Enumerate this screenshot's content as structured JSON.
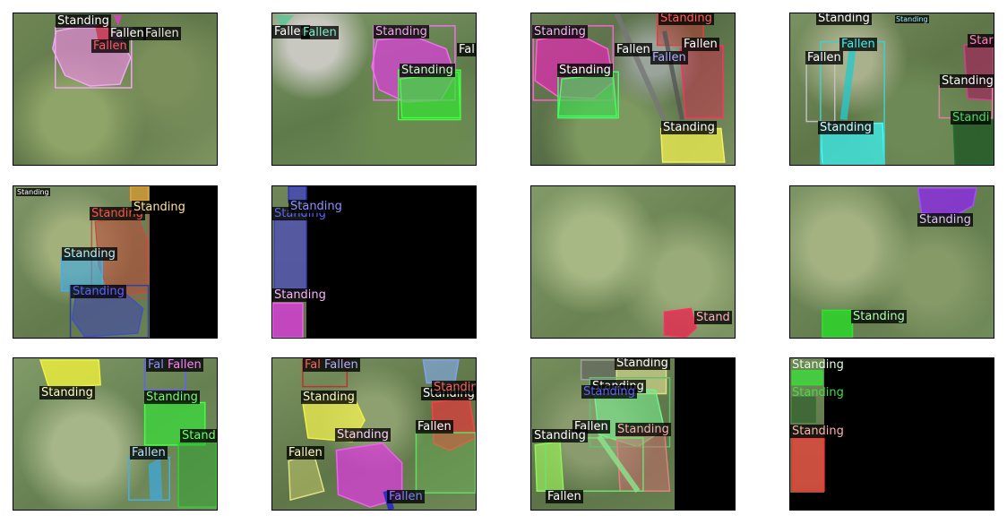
{
  "figure": {
    "panels": [
      {
        "id": "r1c1",
        "labels": [
          {
            "text": "Standing",
            "color": "#ffffff"
          },
          {
            "text": "Fallen",
            "color": "#ffffff"
          },
          {
            "text": "Fallen",
            "color": "#e8e8e8"
          },
          {
            "text": "Fallen",
            "color": "#ff5a5a"
          }
        ]
      },
      {
        "id": "r1c2",
        "labels": [
          {
            "text": "Fallen",
            "color": "#ffffff"
          },
          {
            "text": "Fallen",
            "color": "#7ef0c8"
          },
          {
            "text": "Standing",
            "color": "#ff9cff"
          },
          {
            "text": "Fal",
            "color": "#ffffff"
          },
          {
            "text": "Standing",
            "color": "#c8ffc8"
          }
        ]
      },
      {
        "id": "r1c3",
        "labels": [
          {
            "text": "Standing",
            "color": "#ff6060"
          },
          {
            "text": "Standing",
            "color": "#ffb0ff"
          },
          {
            "text": "Fallen",
            "color": "#ffffff"
          },
          {
            "text": "Fallen",
            "color": "#ffffff"
          },
          {
            "text": "Fallen",
            "color": "#b0b0ff"
          },
          {
            "text": "Standing",
            "color": "#ffffff"
          },
          {
            "text": "Standing",
            "color": "#ffffff"
          }
        ]
      },
      {
        "id": "r1c4",
        "labels": [
          {
            "text": "Standing",
            "color": "#ffffff"
          },
          {
            "text": "Standing",
            "color": "#9ff0ff"
          },
          {
            "text": "Fallen",
            "color": "#40f0f0"
          },
          {
            "text": "Fallen",
            "color": "#ffffff"
          },
          {
            "text": "Star",
            "color": "#ff80c0"
          },
          {
            "text": "Standing",
            "color": "#ffffff"
          },
          {
            "text": "Standi",
            "color": "#40e060"
          },
          {
            "text": "Standing",
            "color": "#e0ffff"
          }
        ]
      },
      {
        "id": "r2c1",
        "labels": [
          {
            "text": "Standing",
            "color": "#ffffff"
          },
          {
            "text": "Standing",
            "color": "#ff5050"
          },
          {
            "text": "Standing",
            "color": "#ffe0a0"
          },
          {
            "text": "Standing",
            "color": "#b0f0ff"
          },
          {
            "text": "Standing",
            "color": "#6060ff"
          }
        ]
      },
      {
        "id": "r2c2",
        "labels": [
          {
            "text": "Standing",
            "color": "#6060ff"
          },
          {
            "text": "Standing",
            "color": "#9090ff"
          },
          {
            "text": "Standing",
            "color": "#ffb0ff"
          }
        ]
      },
      {
        "id": "r2c3",
        "labels": [
          {
            "text": "Stand",
            "color": "#ffb0c0"
          }
        ]
      },
      {
        "id": "r2c4",
        "labels": [
          {
            "text": "Standing",
            "color": "#e0c0ff"
          },
          {
            "text": "Standing",
            "color": "#b0ffb0"
          }
        ]
      },
      {
        "id": "r3c1",
        "labels": [
          {
            "text": "Standing",
            "color": "#ffffc0"
          },
          {
            "text": "Fal",
            "color": "#9090ff"
          },
          {
            "text": "Fallen",
            "color": "#ff80ff"
          },
          {
            "text": "Standing",
            "color": "#70ff70"
          },
          {
            "text": "Stand",
            "color": "#70ff70"
          },
          {
            "text": "Fallen",
            "color": "#b0e0ff"
          }
        ]
      },
      {
        "id": "r3c2",
        "labels": [
          {
            "text": "Fal",
            "color": "#ff6060"
          },
          {
            "text": "Fallen",
            "color": "#b0b0ff"
          },
          {
            "text": "Standing",
            "color": "#ffffc0"
          },
          {
            "text": "Standing",
            "color": "#ffffff"
          },
          {
            "text": "Standin",
            "color": "#ff6060"
          },
          {
            "text": "Fallen",
            "color": "#ffffff"
          },
          {
            "text": "Standing",
            "color": "#ffd0ff"
          },
          {
            "text": "Fallen",
            "color": "#ffffc0"
          },
          {
            "text": "Fallen",
            "color": "#8080ff"
          }
        ]
      },
      {
        "id": "r3c3",
        "labels": [
          {
            "text": "Standing",
            "color": "#ffffff"
          },
          {
            "text": "Standing",
            "color": "#ffffff"
          },
          {
            "text": "Standing",
            "color": "#6060ff"
          },
          {
            "text": "Fallen",
            "color": "#ffffff"
          },
          {
            "text": "Standing",
            "color": "#ffb0b0"
          },
          {
            "text": "Standing",
            "color": "#ffffff"
          },
          {
            "text": "Fallen",
            "color": "#ffffff"
          }
        ]
      },
      {
        "id": "r3c4",
        "labels": [
          {
            "text": "Standing",
            "color": "#e0ffe0"
          },
          {
            "text": "Standing",
            "color": "#40e040"
          },
          {
            "text": "Standing",
            "color": "#ffb0b0"
          }
        ]
      }
    ]
  }
}
